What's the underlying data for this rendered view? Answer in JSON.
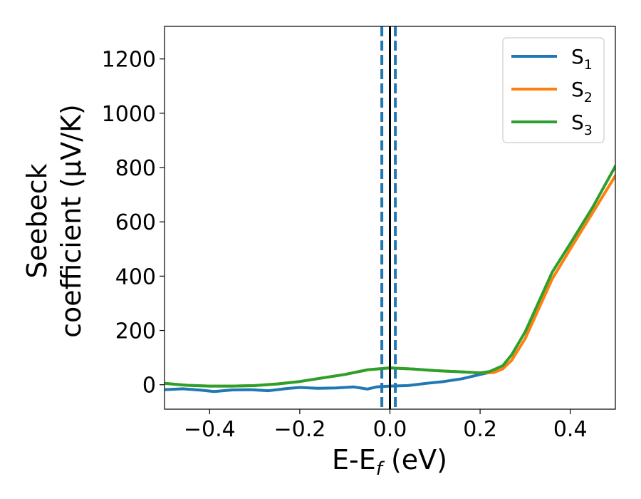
{
  "chart_data": {
    "type": "line",
    "title": "",
    "xlabel": "E-E",
    "xlabel_subscript": "f",
    "xlabel_unit": " (eV)",
    "ylabel_line1": "Seebeck",
    "ylabel_line2": "coefficient  (μV/K)",
    "xlim": [
      -0.5,
      0.5
    ],
    "ylim": [
      -90,
      1320
    ],
    "xticks": [
      -0.4,
      -0.2,
      0.0,
      0.2,
      0.4
    ],
    "xtick_labels": [
      "−0.4",
      "−0.2",
      "0.0",
      "0.2",
      "0.4"
    ],
    "yticks": [
      0,
      200,
      400,
      600,
      800,
      1000,
      1200
    ],
    "ytick_labels": [
      "0",
      "200",
      "400",
      "600",
      "800",
      "1000",
      "1200"
    ],
    "grid": false,
    "legend_position": "top-right",
    "vertical_lines": [
      {
        "x": -0.018,
        "style": "dashed",
        "color": "#1f77b4"
      },
      {
        "x": 0.012,
        "style": "dashed",
        "color": "#1f77b4"
      },
      {
        "x": 0.0,
        "style": "solid",
        "color": "#000000"
      }
    ],
    "series": [
      {
        "name": "S",
        "name_subscript": "1",
        "color": "#1f77b4",
        "x": [
          -0.5,
          -0.46,
          -0.42,
          -0.39,
          -0.35,
          -0.31,
          -0.27,
          -0.23,
          -0.2,
          -0.16,
          -0.12,
          -0.08,
          -0.05,
          -0.03,
          0.0,
          0.04,
          0.08,
          0.12,
          0.16,
          0.2,
          0.22
        ],
        "y": [
          -18,
          -15,
          -20,
          -25,
          -19,
          -18,
          -22,
          -14,
          -10,
          -13,
          -12,
          -8,
          -16,
          -8,
          -5,
          -3,
          5,
          12,
          22,
          38,
          45
        ]
      },
      {
        "name": "S",
        "name_subscript": "2",
        "color": "#ff7f0e",
        "x": [
          -0.5,
          -0.45,
          -0.4,
          -0.35,
          -0.3,
          -0.25,
          -0.2,
          -0.15,
          -0.1,
          -0.05,
          0.0,
          0.05,
          0.1,
          0.15,
          0.2,
          0.23,
          0.25,
          0.27,
          0.3,
          0.33,
          0.36,
          0.4,
          0.45,
          0.5
        ],
        "y": [
          5,
          -2,
          -5,
          -5,
          -3,
          3,
          12,
          25,
          38,
          55,
          62,
          58,
          52,
          48,
          44,
          45,
          58,
          90,
          170,
          280,
          390,
          500,
          635,
          770
        ]
      },
      {
        "name": "S",
        "name_subscript": "3",
        "color": "#2ca02c",
        "x": [
          -0.5,
          -0.45,
          -0.4,
          -0.35,
          -0.3,
          -0.25,
          -0.2,
          -0.15,
          -0.1,
          -0.05,
          0.0,
          0.05,
          0.1,
          0.15,
          0.2,
          0.22,
          0.25,
          0.27,
          0.3,
          0.33,
          0.36,
          0.4,
          0.45,
          0.5
        ],
        "y": [
          5,
          -2,
          -5,
          -5,
          -3,
          3,
          12,
          25,
          38,
          55,
          62,
          58,
          52,
          48,
          44,
          48,
          70,
          110,
          195,
          305,
          415,
          520,
          655,
          805
        ]
      }
    ]
  }
}
